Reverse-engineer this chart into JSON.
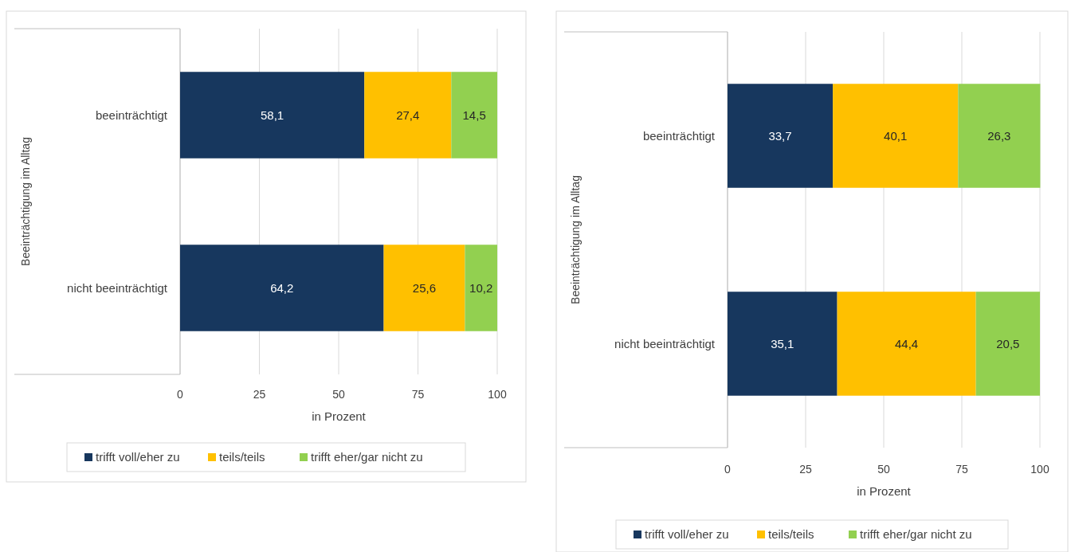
{
  "chart_data": [
    {
      "type": "bar",
      "orientation": "horizontal",
      "stacked": true,
      "categories": [
        "beeinträchtigt",
        "nicht beeinträchtigt"
      ],
      "xlabel": "in Prozent",
      "ylabel": "Beeinträchtigung im Alltag",
      "xlim": [
        0,
        100
      ],
      "xticks": [
        0,
        25,
        50,
        75,
        100
      ],
      "grid": "x",
      "legend": "bottom",
      "series": [
        {
          "name": "trifft voll/eher zu",
          "color": "#17375e",
          "values": [
            58.1,
            64.2
          ],
          "value_labels": [
            "58,1",
            "64,2"
          ]
        },
        {
          "name": "teils/teils",
          "color": "#ffc000",
          "values": [
            27.4,
            25.6
          ],
          "value_labels": [
            "27,4",
            "25,6"
          ]
        },
        {
          "name": "trifft eher/gar nicht zu",
          "color": "#92d050",
          "values": [
            14.5,
            10.2
          ],
          "value_labels": [
            "14,5",
            "10,2"
          ]
        }
      ]
    },
    {
      "type": "bar",
      "orientation": "horizontal",
      "stacked": true,
      "categories": [
        "beeinträchtigt",
        "nicht beeinträchtigt"
      ],
      "xlabel": "in Prozent",
      "ylabel": "Beeinträchtigung im Alltag",
      "xlim": [
        0,
        100
      ],
      "xticks": [
        0,
        25,
        50,
        75,
        100
      ],
      "grid": "x",
      "legend": "bottom",
      "series": [
        {
          "name": "trifft voll/eher zu",
          "color": "#17375e",
          "values": [
            33.7,
            35.1
          ],
          "value_labels": [
            "33,7",
            "35,1"
          ]
        },
        {
          "name": "teils/teils",
          "color": "#ffc000",
          "values": [
            40.1,
            44.4
          ],
          "value_labels": [
            "40,1",
            "44,4"
          ]
        },
        {
          "name": "trifft eher/gar nicht zu",
          "color": "#92d050",
          "values": [
            26.3,
            20.5
          ],
          "value_labels": [
            "26,3",
            "20,5"
          ]
        }
      ]
    }
  ]
}
